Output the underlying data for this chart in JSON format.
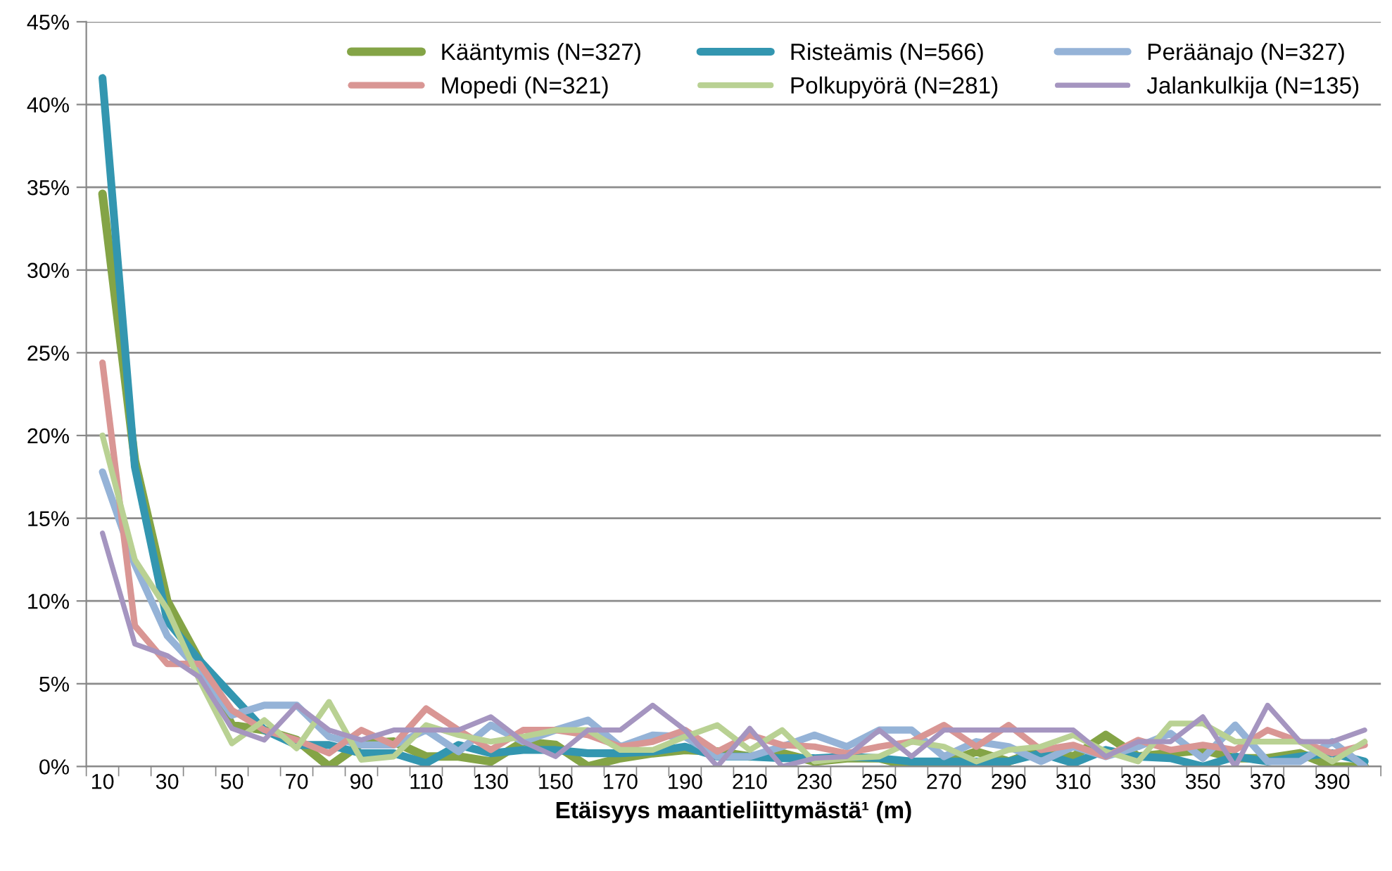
{
  "chart_data": {
    "type": "line",
    "xlabel": "Etäisyys maantieliittymästä¹ (m)",
    "categories": [
      "10",
      null,
      "30",
      null,
      "50",
      null,
      "70",
      null,
      "90",
      null,
      "110",
      null,
      "130",
      null,
      "150",
      null,
      "170",
      null,
      "190",
      null,
      "210",
      null,
      "230",
      null,
      "250",
      null,
      "270",
      null,
      "290",
      null,
      "310",
      null,
      "330",
      null,
      "350",
      null,
      "370",
      null,
      "390",
      null
    ],
    "ylim": [
      0,
      45
    ],
    "yticks": [
      {
        "value": 0,
        "label": "0%"
      },
      {
        "value": 5,
        "label": "5%"
      },
      {
        "value": 10,
        "label": "10%"
      },
      {
        "value": 15,
        "label": "15%"
      },
      {
        "value": 20,
        "label": "20%"
      },
      {
        "value": 25,
        "label": "25%"
      },
      {
        "value": 30,
        "label": "30%"
      },
      {
        "value": 35,
        "label": "35%"
      },
      {
        "value": 40,
        "label": "40%"
      },
      {
        "value": 45,
        "label": "45%"
      }
    ],
    "grid": "y",
    "legend": "top right",
    "marker": "none",
    "line_style": "solid",
    "series": [
      {
        "name": "Kääntymis (N=327)",
        "color": "#84a446",
        "values": [
          34.6,
          18.5,
          10.0,
          6.4,
          2.5,
          2.2,
          1.6,
          0,
          1.4,
          1.5,
          0.6,
          0.6,
          0.3,
          1.5,
          1.3,
          0,
          0.5,
          0.8,
          1.0,
          0.9,
          0.6,
          0.8,
          0.3,
          0.5,
          0.5,
          0,
          0.2,
          0.9,
          0.3,
          1.0,
          0.6,
          1.9,
          0.6,
          0.8,
          1.0,
          0.5,
          0.5,
          0.8,
          0,
          0
        ]
      },
      {
        "name": "Risteämis (N=566)",
        "color": "#3396b0",
        "values": [
          41.6,
          18.1,
          8.8,
          6.4,
          4.3,
          2.2,
          1.3,
          1.3,
          0.8,
          0.8,
          0.2,
          1.3,
          0.8,
          1.0,
          1.0,
          0.8,
          0.8,
          0.9,
          1.2,
          0.6,
          0.6,
          0.5,
          0.5,
          0.6,
          0.5,
          0.3,
          0.3,
          0.3,
          0.3,
          0.8,
          0.2,
          1.0,
          0.6,
          0.5,
          0,
          0.6,
          0.3,
          0.6,
          0.8,
          0.3
        ]
      },
      {
        "name": "Peräänajo (N=327)",
        "color": "#95b3d7",
        "values": [
          17.8,
          12.2,
          7.9,
          5.8,
          3.1,
          3.7,
          3.7,
          1.8,
          1.3,
          1.3,
          2.2,
          0.9,
          2.5,
          1.5,
          2.2,
          2.8,
          1.2,
          1.9,
          1.8,
          0.6,
          0.6,
          1.2,
          1.9,
          1.2,
          2.2,
          2.2,
          0.6,
          1.5,
          1.2,
          0.3,
          1.2,
          0.6,
          1.2,
          2.0,
          0.5,
          2.5,
          0.3,
          0.3,
          1.5,
          0
        ]
      },
      {
        "name": "Mopedi (N=321)",
        "color": "#d99694",
        "values": [
          24.4,
          8.5,
          6.2,
          6.2,
          3.4,
          2.2,
          1.6,
          0.8,
          2.2,
          1.3,
          3.5,
          2.2,
          1.0,
          2.2,
          2.2,
          1.9,
          1.2,
          1.5,
          2.2,
          0.9,
          1.9,
          1.3,
          1.2,
          0.8,
          1.2,
          1.5,
          2.5,
          1.2,
          2.5,
          1.0,
          1.3,
          0.6,
          1.6,
          1.0,
          1.3,
          1.0,
          2.2,
          1.5,
          0.8,
          1.3
        ]
      },
      {
        "name": "Polkupyörä (N=281)",
        "color": "#b9d193",
        "values": [
          20.0,
          12.5,
          9.5,
          5.2,
          1.4,
          2.8,
          1.1,
          3.9,
          0.4,
          0.6,
          2.5,
          1.9,
          1.5,
          1.8,
          2.2,
          2.2,
          1.0,
          1.0,
          1.8,
          2.5,
          1.0,
          2.2,
          0.3,
          0.5,
          0.6,
          1.5,
          1.2,
          0.3,
          1.0,
          1.2,
          1.9,
          0.9,
          0.3,
          2.6,
          2.6,
          1.5,
          1.5,
          1.5,
          0.3,
          1.5
        ]
      },
      {
        "name": "Jalankulkija (N=135)",
        "color": "#a595c0",
        "values": [
          14.1,
          7.4,
          6.7,
          5.4,
          2.3,
          1.6,
          3.7,
          2.2,
          1.6,
          2.2,
          2.2,
          2.2,
          3.0,
          1.5,
          0.6,
          2.2,
          2.2,
          3.7,
          2.2,
          0,
          2.3,
          0,
          0.5,
          0.6,
          2.2,
          0.6,
          2.2,
          2.2,
          2.2,
          2.2,
          2.2,
          0.6,
          1.5,
          1.5,
          3.0,
          0,
          3.7,
          1.5,
          1.5,
          2.2
        ]
      }
    ]
  }
}
